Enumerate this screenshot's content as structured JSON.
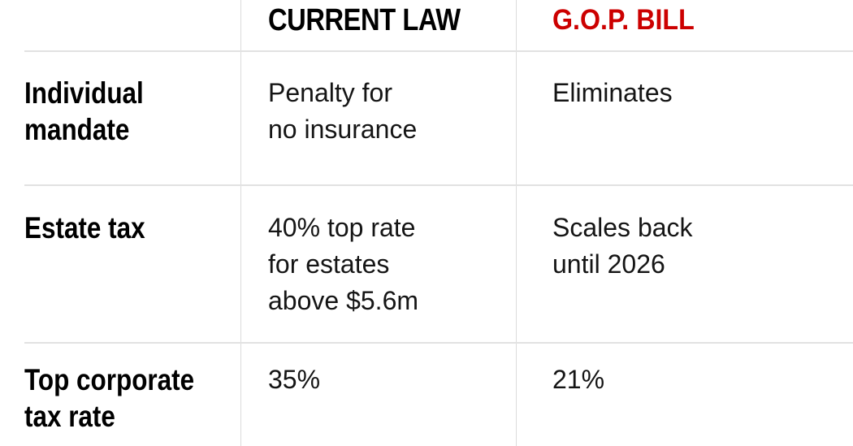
{
  "chart_data": {
    "type": "table",
    "columns": [
      "",
      "CURRENT LAW",
      "G.O.P. BILL"
    ],
    "rows": [
      [
        "Individual mandate",
        "Penalty for no insurance",
        "Eliminates"
      ],
      [
        "Estate tax",
        "40% top rate for estates above $5.6m",
        "Scales back until 2026"
      ],
      [
        "Top corporate tax rate",
        "35%",
        "21%"
      ]
    ],
    "layout": "three-column comparison table, full-height light gray column dividers, horizontal rules inset from left edge",
    "grid": true
  },
  "header": {
    "current_law": "CURRENT LAW",
    "gop_bill": "G.O.P. BILL"
  },
  "rows": [
    {
      "label": "Individual\nmandate",
      "current_law": "Penalty for\nno insurance",
      "gop_bill": "Eliminates"
    },
    {
      "label": "Estate tax",
      "current_law": "40% top rate\nfor estates\nabove $5.6m",
      "gop_bill": "Scales back\nuntil 2026"
    },
    {
      "label": "Top corporate\ntax rate",
      "current_law": "35%",
      "gop_bill": "21%"
    }
  ],
  "colors": {
    "gop_bill_red": "#cc0000",
    "header_black": "#000000",
    "body_text": "#151515",
    "divider_gray": "#dcdcdc",
    "rule_gray": "#e2e2e2",
    "background": "#ffffff"
  }
}
